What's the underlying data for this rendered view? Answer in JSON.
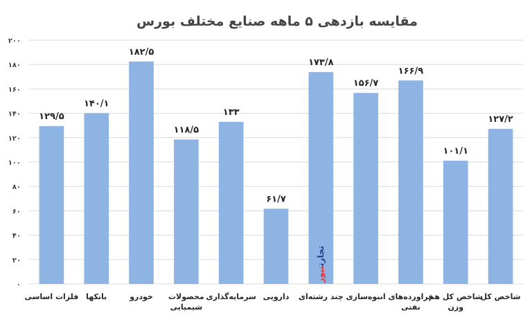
{
  "chart_data": {
    "type": "bar",
    "title": "مقایسه بازدهی ۵ ماهه صنایع مختلف بورس",
    "xlabel": "",
    "ylabel": "",
    "ylim": [
      0,
      200
    ],
    "ytick_step": 20,
    "yticks": [
      "۰",
      "۲۰",
      "۴۰",
      "۶۰",
      "۸۰",
      "۱۰۰",
      "۱۲۰",
      "۱۴۰",
      "۱۶۰",
      "۱۸۰",
      "۲۰۰"
    ],
    "grid": true,
    "legend": "none",
    "bar_color": "#8DB4E2",
    "grid_color": "#D9D9D9",
    "categories": [
      "فلزات اساسی",
      "بانکها",
      "خودرو",
      "محصولات شیمیایی",
      "سرمایه‌گذاری",
      "دارویی",
      "چند رشته‌ای",
      "انبوه‌سازی",
      "فراورده‌های نفتی",
      "شاخص کل هم وزن",
      "شاخص کل"
    ],
    "category_lines": [
      [
        "فلزات اساسی"
      ],
      [
        "بانکها"
      ],
      [
        "خودرو"
      ],
      [
        "محصولات",
        "شیمیایی"
      ],
      [
        "سرمایه‌گذاری"
      ],
      [
        "دارویی"
      ],
      [
        "چند رشته‌ای"
      ],
      [
        "انبوه‌سازی"
      ],
      [
        "فراورده‌های",
        "نفتی"
      ],
      [
        "شاخص کل هم",
        "وزن"
      ],
      [
        "شاخص کل"
      ]
    ],
    "values": [
      129.5,
      140.1,
      182.5,
      118.5,
      133,
      61.7,
      173.8,
      156.7,
      166.9,
      101.1,
      127.2
    ],
    "data_labels": [
      "۱۲۹/۵",
      "۱۴۰/۱",
      "۱۸۲/۵",
      "۱۱۸/۵",
      "۱۳۳",
      "۶۱/۷",
      "۱۷۳/۸",
      "۱۵۶/۷",
      "۱۶۶/۹",
      "۱۰۱/۱",
      "۱۲۷/۲"
    ]
  },
  "watermark": {
    "part1": "تجارت",
    "part2": "نیوز",
    "color1": "#1F3C88",
    "color2": "#E03A3E"
  }
}
